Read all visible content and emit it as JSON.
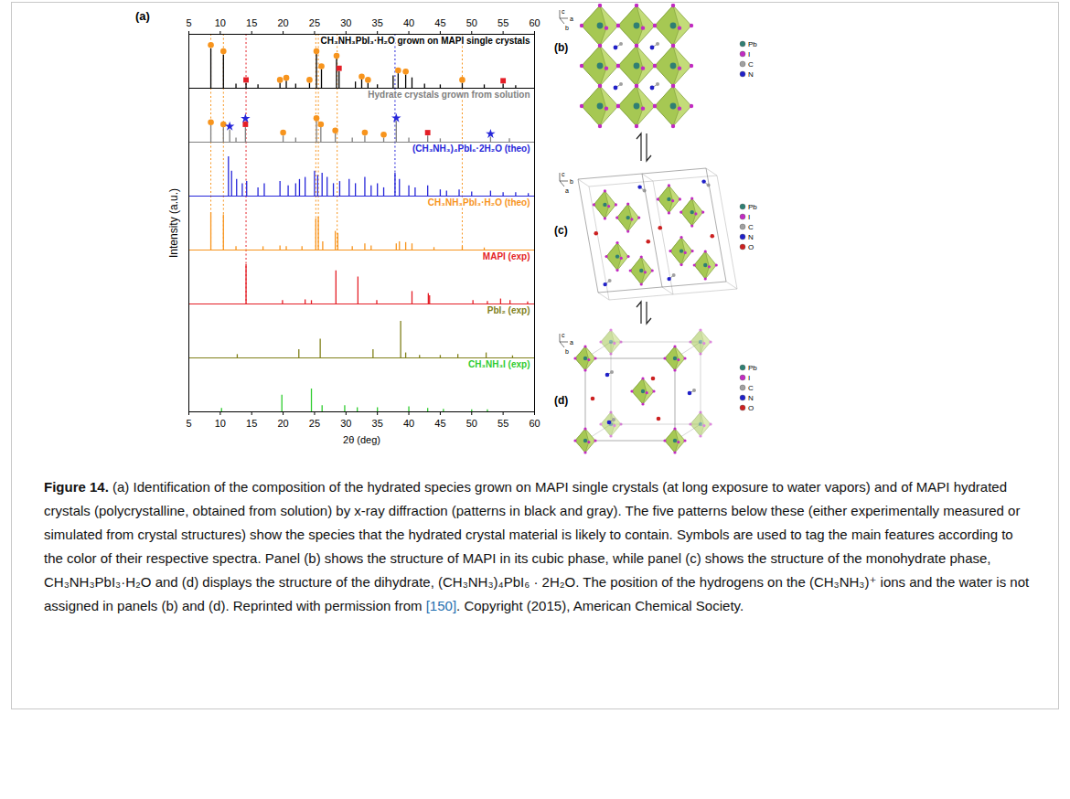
{
  "chart_data": {
    "type": "spectra",
    "panel": "(a)",
    "x_label": "2θ (deg)",
    "y_label": "Intensity (a.u.)",
    "xlim": [
      5,
      60
    ],
    "xticks": [
      5,
      10,
      15,
      20,
      25,
      30,
      35,
      40,
      45,
      50,
      55,
      60
    ],
    "ylim": [
      0,
      130
    ],
    "tick_labels": "x",
    "series": [
      {
        "name": "CH₃NH₃PbI₃·H₂O grown on MAPI single crystals",
        "color": "#000000",
        "x": [
          8.5,
          10.5,
          12.5,
          14.1,
          16,
          19.5,
          20.5,
          22,
          24.2,
          25.3,
          26.1,
          28.5,
          28.9,
          31.5,
          32.5,
          33.5,
          35,
          37.5,
          38.3,
          39.5,
          40.5,
          42.5,
          45,
          48.5,
          52,
          55,
          57
        ],
        "values": [
          95,
          80,
          10,
          12,
          8,
          12,
          17,
          10,
          12,
          82,
          45,
          70,
          40,
          15,
          20,
          12,
          8,
          30,
          35,
          32,
          25,
          10,
          8,
          12,
          8,
          10,
          6
        ],
        "tags": [
          {
            "marker": "circle",
            "color": "#f7941d",
            "x": [
              8.5,
              10.5,
              19.5,
              20.5,
              24.2,
              25.3,
              26.1,
              28.5,
              32.5,
              33.5,
              38.3,
              39.5,
              48.5
            ],
            "y": [
              104,
              89,
              20,
              25,
              20,
              89,
              53,
              78,
              28,
              20,
              43,
              40,
              20
            ]
          },
          {
            "marker": "square",
            "color": "#e41e26",
            "x": [
              14.1,
              28.9,
              55
            ],
            "y": [
              20,
              48,
              18
            ]
          }
        ]
      },
      {
        "name": "Hydrate crystals grown from solution",
        "color": "#808080",
        "x": [
          8.5,
          10.5,
          11.5,
          12.5,
          14,
          20,
          22,
          25.3,
          26,
          28.3,
          31,
          33,
          36,
          38,
          40,
          43,
          45,
          53,
          56
        ],
        "values": [
          40,
          35,
          30,
          10,
          35,
          15,
          10,
          50,
          35,
          20,
          10,
          15,
          10,
          50,
          10,
          15,
          8,
          12,
          8
        ],
        "tags": [
          {
            "marker": "circle",
            "color": "#f7941d",
            "x": [
              8.5,
              10.5,
              20,
              25.3,
              26,
              28.3,
              33,
              36
            ],
            "y": [
              48,
              43,
              23,
              58,
              43,
              28,
              23,
              18
            ]
          },
          {
            "marker": "square",
            "color": "#e41e26",
            "x": [
              14,
              43
            ],
            "y": [
              43,
              23
            ]
          },
          {
            "marker": "star",
            "color": "#2626d9",
            "x": [
              11.5,
              14,
              38,
              53
            ],
            "y": [
              38,
              57,
              58,
              20
            ]
          }
        ]
      },
      {
        "name": "(CH₃NH₃)₄PbI₆·2H₂O (theo)",
        "color": "#2626d9",
        "x": [
          11.3,
          11.8,
          12.6,
          13.5,
          14.2,
          16,
          17,
          19.5,
          20.8,
          22,
          22.6,
          23.5,
          25,
          25.5,
          26.2,
          27,
          28,
          29,
          30.5,
          31.5,
          33,
          34,
          35,
          36,
          37.8,
          38.5,
          40,
          41,
          43,
          45,
          46,
          48,
          50,
          53,
          55,
          57,
          59
        ],
        "values": [
          95,
          60,
          40,
          30,
          35,
          20,
          30,
          35,
          25,
          30,
          40,
          45,
          60,
          50,
          55,
          45,
          30,
          35,
          40,
          30,
          45,
          25,
          30,
          20,
          55,
          40,
          25,
          20,
          25,
          15,
          12,
          15,
          10,
          12,
          8,
          8,
          6
        ]
      },
      {
        "name": "CH₃NH₃PbI₃·H₂O (theo)",
        "color": "#f7941d",
        "x": [
          8.5,
          10.5,
          12.5,
          16.8,
          19.5,
          20.5,
          23,
          25.2,
          25.6,
          26.3,
          28.3,
          28.7,
          31,
          33,
          34,
          38,
          38.5,
          39.5,
          40.5,
          44,
          48.5,
          52
        ],
        "values": [
          90,
          85,
          8,
          8,
          10,
          8,
          8,
          75,
          80,
          20,
          45,
          40,
          8,
          15,
          10,
          15,
          20,
          18,
          15,
          6,
          8,
          5
        ]
      },
      {
        "name": "MAPI (exp)",
        "color": "#e41e26",
        "x": [
          14.1,
          19.9,
          23.5,
          24.5,
          28.4,
          31.9,
          34.9,
          40.5,
          43.1,
          43.3,
          50.2,
          52.5,
          54.6,
          56.1,
          58.9
        ],
        "values": [
          95,
          8,
          10,
          8,
          80,
          65,
          8,
          30,
          25,
          20,
          8,
          6,
          12,
          8,
          5
        ]
      },
      {
        "name": "PbI₂ (exp)",
        "color": "#80801a",
        "x": [
          12.7,
          22.5,
          25.9,
          34.3,
          38.7,
          39.5,
          41.7,
          45,
          47.8,
          52.3,
          56.5
        ],
        "values": [
          8,
          20,
          45,
          20,
          88,
          12,
          6,
          6,
          8,
          12,
          5
        ]
      },
      {
        "name": "CH₃NH₃I (exp)",
        "color": "#2ecc2e",
        "x": [
          10.2,
          19.8,
          24.5,
          26.2,
          29.8,
          31.8,
          35,
          40,
          43,
          45.5,
          50,
          52.5
        ],
        "values": [
          8,
          40,
          55,
          15,
          15,
          10,
          10,
          12,
          8,
          6,
          5,
          5
        ]
      }
    ],
    "guides": [
      {
        "x": 8.5,
        "color": "#f7941d"
      },
      {
        "x": 10.5,
        "color": "#f7941d"
      },
      {
        "x": 25.2,
        "color": "#f7941d"
      },
      {
        "x": 25.6,
        "color": "#f7941d"
      },
      {
        "x": 28.6,
        "color": "#f7941d"
      },
      {
        "x": 48.5,
        "color": "#f7941d"
      },
      {
        "x": 14.1,
        "color": "#e41e26"
      },
      {
        "x": 37.8,
        "color": "#2626d9"
      }
    ]
  },
  "structures": [
    {
      "panel": "(b)",
      "axes": [
        "c",
        "a",
        "b"
      ],
      "legend": [
        {
          "label": "Pb",
          "color": "#2f7f73"
        },
        {
          "label": "I",
          "color": "#c22ac2"
        },
        {
          "label": "C",
          "color": "#a0a0a0"
        },
        {
          "label": "N",
          "color": "#2020c8"
        }
      ]
    },
    {
      "panel": "(c)",
      "axes": [
        "c",
        "b",
        "a"
      ],
      "legend": [
        {
          "label": "Pb",
          "color": "#2f7f73"
        },
        {
          "label": "I",
          "color": "#c22ac2"
        },
        {
          "label": "C",
          "color": "#a0a0a0"
        },
        {
          "label": "N",
          "color": "#2020c8"
        },
        {
          "label": "O",
          "color": "#cc2020"
        }
      ]
    },
    {
      "panel": "(d)",
      "axes": [
        "c",
        "a",
        "b"
      ],
      "legend": [
        {
          "label": "Pb",
          "color": "#2f7f73"
        },
        {
          "label": "I",
          "color": "#c22ac2"
        },
        {
          "label": "C",
          "color": "#a0a0a0"
        },
        {
          "label": "N",
          "color": "#2020c8"
        },
        {
          "label": "O",
          "color": "#cc2020"
        }
      ]
    }
  ],
  "caption": {
    "label": "Figure 14.",
    "text": "(a) Identification of the composition of the hydrated species grown on MAPI single crystals (at long exposure to water vapors) and of MAPI hydrated crystals (polycrystalline, obtained from solution) by x-ray diffraction (patterns in black and gray). The five patterns below these (either experimentally measured or simulated from crystal structures) show the species that the hydrated crystal material is likely to contain. Symbols are used to tag the main features according to the color of their respective spectra. Panel (b) shows the structure of MAPI in its cubic phase, while panel (c) shows the structure of the monohydrate phase, CH₃NH₃PbI₃·H₂O and (d) displays the structure of the dihydrate, (CH₃NH₃)₄PbI₆ · 2H₂O. The position of the hydrogens on the (CH₃NH₃)⁺ ions and the water is not assigned in panels (b) and (d). Reprinted with permission from [150]. Copyright (2015), American Chemical Society.",
    "reference": "[150]"
  }
}
